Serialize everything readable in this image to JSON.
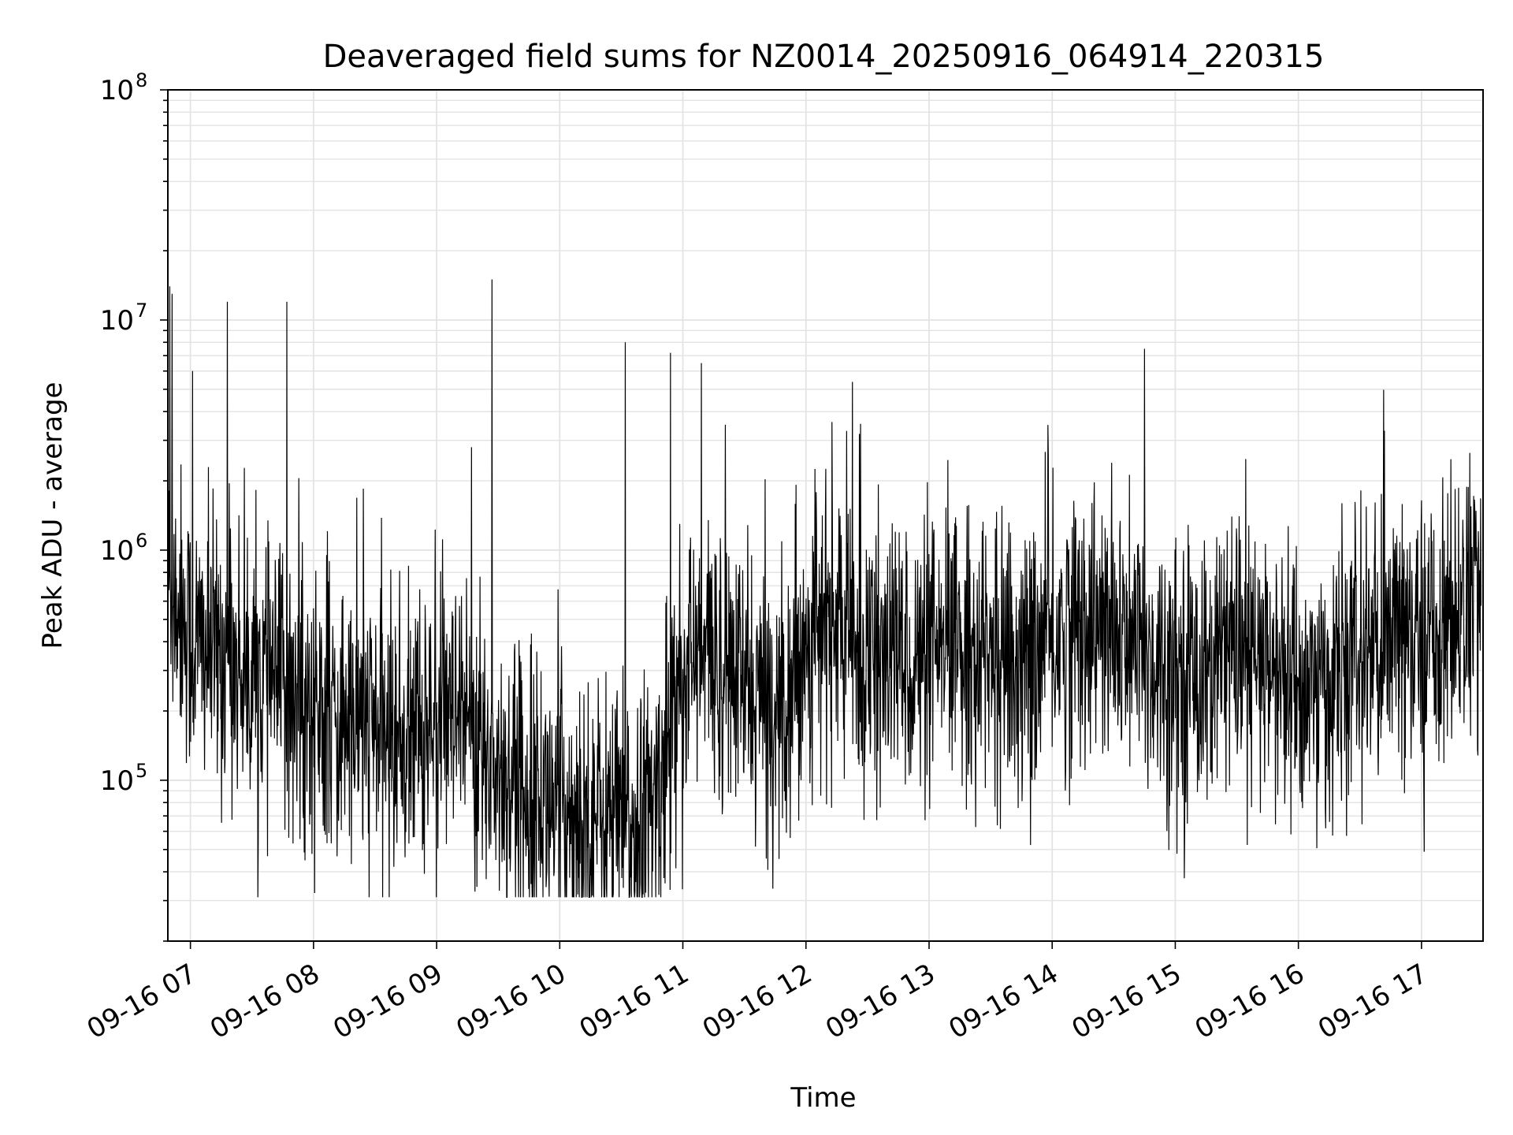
{
  "chart_data": {
    "type": "line",
    "title": "Deaveraged field sums for NZ0014_20250916_064914_220315",
    "xlabel": "Time",
    "ylabel": "Peak ADU - average",
    "x_range": [
      "2025-09-16 06:49",
      "2025-09-16 17:30"
    ],
    "ylim": [
      20000,
      100000000
    ],
    "yscale": "log",
    "grid": true,
    "x_ticks": [
      "09-16 07",
      "09-16 08",
      "09-16 09",
      "09-16 10",
      "09-16 11",
      "09-16 12",
      "09-16 13",
      "09-16 14",
      "09-16 15",
      "09-16 16",
      "09-16 17"
    ],
    "y_ticks": [
      {
        "value": 100000,
        "base": "10",
        "exp": "5"
      },
      {
        "value": 1000000,
        "base": "10",
        "exp": "6"
      },
      {
        "value": 10000000,
        "base": "10",
        "exp": "7"
      },
      {
        "value": 100000000,
        "base": "10",
        "exp": "8"
      }
    ],
    "series": [
      {
        "color": "#000000",
        "x": [
          "2025-09-16 06:49",
          "2025-09-16 06:55",
          "2025-09-16 07:00",
          "2025-09-16 07:15",
          "2025-09-16 07:30",
          "2025-09-16 07:45",
          "2025-09-16 08:00",
          "2025-09-16 08:15",
          "2025-09-16 08:30",
          "2025-09-16 08:45",
          "2025-09-16 09:00",
          "2025-09-16 09:15",
          "2025-09-16 09:30",
          "2025-09-16 09:45",
          "2025-09-16 10:00",
          "2025-09-16 10:15",
          "2025-09-16 10:30",
          "2025-09-16 10:45",
          "2025-09-16 11:00",
          "2025-09-16 11:15",
          "2025-09-16 11:30",
          "2025-09-16 11:45",
          "2025-09-16 12:00",
          "2025-09-16 12:15",
          "2025-09-16 12:30",
          "2025-09-16 12:45",
          "2025-09-16 13:00",
          "2025-09-16 13:15",
          "2025-09-16 13:30",
          "2025-09-16 13:45",
          "2025-09-16 14:00",
          "2025-09-16 14:15",
          "2025-09-16 14:30",
          "2025-09-16 14:45",
          "2025-09-16 15:00",
          "2025-09-16 15:15",
          "2025-09-16 15:30",
          "2025-09-16 15:45",
          "2025-09-16 16:00",
          "2025-09-16 16:15",
          "2025-09-16 16:30",
          "2025-09-16 16:45",
          "2025-09-16 17:00",
          "2025-09-16 17:15",
          "2025-09-16 17:30"
        ],
        "y": [
          700000,
          600000,
          400000,
          350000,
          300000,
          250000,
          200000,
          180000,
          170000,
          150000,
          180000,
          150000,
          110000,
          90000,
          75000,
          70000,
          65000,
          70000,
          300000,
          350000,
          250000,
          200000,
          400000,
          500000,
          300000,
          350000,
          300000,
          400000,
          350000,
          300000,
          400000,
          500000,
          400000,
          350000,
          300000,
          300000,
          350000,
          300000,
          250000,
          250000,
          350000,
          400000,
          400000,
          500000,
          700000
        ]
      }
    ],
    "spikes": [
      {
        "x": "2025-09-16 06:50",
        "y": 14000000
      },
      {
        "x": "2025-09-16 06:51",
        "y": 13000000
      },
      {
        "x": "2025-09-16 07:01",
        "y": 6000000
      },
      {
        "x": "2025-09-16 07:18",
        "y": 12000000
      },
      {
        "x": "2025-09-16 07:47",
        "y": 12000000
      },
      {
        "x": "2025-09-16 09:17",
        "y": 2800000
      },
      {
        "x": "2025-09-16 09:27",
        "y": 15000000
      },
      {
        "x": "2025-09-16 10:32",
        "y": 8000000
      },
      {
        "x": "2025-09-16 10:54",
        "y": 7200000
      },
      {
        "x": "2025-09-16 11:09",
        "y": 6500000
      },
      {
        "x": "2025-09-16 12:26",
        "y": 3200000
      },
      {
        "x": "2025-09-16 13:58",
        "y": 3500000
      },
      {
        "x": "2025-09-16 14:45",
        "y": 7500000
      },
      {
        "x": "2025-09-16 16:42",
        "y": 3300000
      }
    ]
  }
}
